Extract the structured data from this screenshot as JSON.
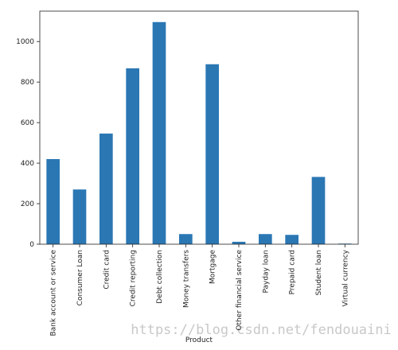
{
  "chart_data": {
    "type": "bar",
    "x_label": "Product",
    "categories": [
      "Bank account or service",
      "Consumer Loan",
      "Credit card",
      "Credit reporting",
      "Debt collection",
      "Money transfers",
      "Mortgage",
      "Other financial service",
      "Payday loan",
      "Prepaid card",
      "Student loan",
      "Virtual currency"
    ],
    "values": [
      420,
      270,
      546,
      868,
      1096,
      50,
      888,
      12,
      50,
      46,
      332,
      3
    ],
    "color": "#2a77b4",
    "ylim": [
      0,
      1150
    ],
    "yticks": [
      0,
      200,
      400,
      600,
      800,
      1000
    ],
    "grid": false,
    "watermark": "https://blog.csdn.net/fendouaini"
  }
}
